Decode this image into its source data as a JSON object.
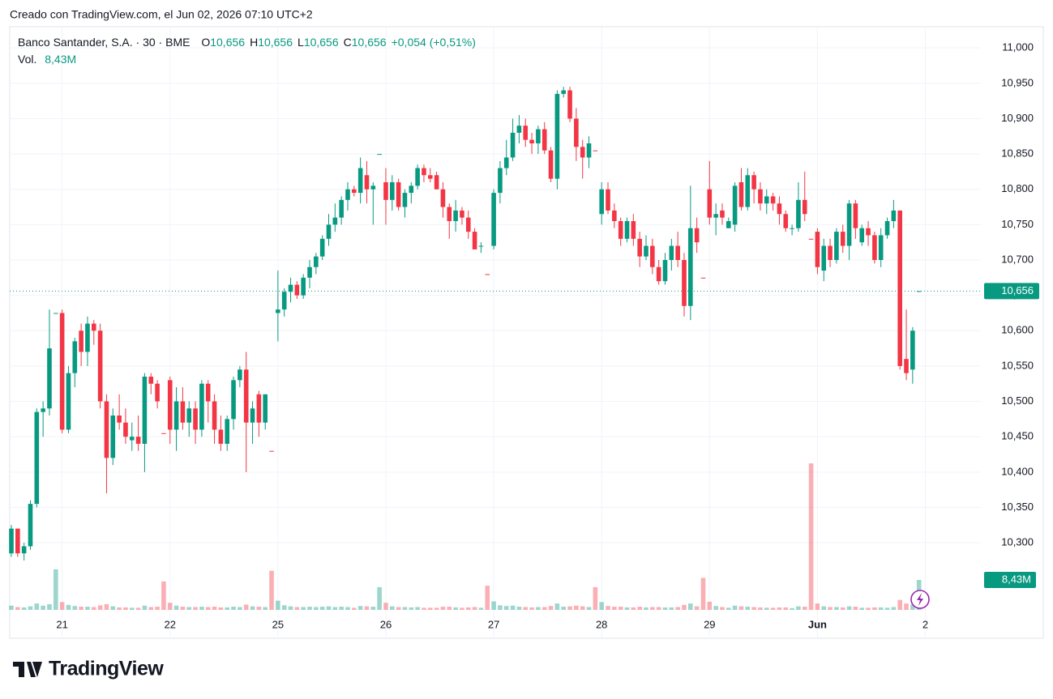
{
  "header": "Creado con TradingView.com, el Jun 02, 2026 07:10 UTC+2",
  "footer": "TradingView",
  "chart_data": {
    "type": "candlestick",
    "symbol": "Banco Santander, S.A. · 30 · BME",
    "ohlc_legend": [
      {
        "key": "O",
        "value": "10,656"
      },
      {
        "key": "H",
        "value": "10,656"
      },
      {
        "key": "L",
        "value": "10,656"
      },
      {
        "key": "C",
        "value": "10,656"
      }
    ],
    "change": "+0,054 (+0,51%)",
    "volume_legend": {
      "key": "Vol.",
      "value": "8,43M"
    },
    "up_color": "#089981",
    "down_color": "#f23645",
    "grid": true,
    "categories": [
      null,
      null,
      null,
      null,
      null,
      null,
      null,
      null,
      "21",
      null,
      null,
      null,
      null,
      null,
      null,
      null,
      null,
      null,
      null,
      null,
      null,
      null,
      null,
      null,
      null,
      "22",
      null,
      null,
      null,
      null,
      null,
      null,
      null,
      null,
      null,
      null,
      null,
      null,
      null,
      null,
      null,
      null,
      "25",
      null,
      null,
      null,
      null,
      null,
      null,
      null,
      null,
      null,
      null,
      null,
      null,
      null,
      null,
      null,
      null,
      "26",
      null,
      null,
      null,
      null,
      null,
      null,
      null,
      null,
      null,
      null,
      null,
      null,
      null,
      null,
      null,
      null,
      "27",
      null,
      null,
      null,
      null,
      null,
      null,
      null,
      null,
      null,
      null,
      null,
      null,
      null,
      null,
      null,
      null,
      "28",
      null,
      null,
      null,
      null,
      null,
      null,
      null,
      null,
      null,
      null,
      null,
      null,
      null,
      null,
      null,
      null,
      "29",
      null,
      null,
      null,
      null,
      null,
      null,
      null,
      null,
      null,
      null,
      null,
      null,
      null,
      null,
      null,
      null,
      "Jun",
      null,
      null,
      null,
      null,
      null,
      null,
      null,
      null,
      null,
      null,
      null,
      null,
      null,
      null,
      null,
      null,
      "2"
    ],
    "ohlc": [
      [
        10.285,
        10.325,
        10.28,
        10.32
      ],
      [
        10.32,
        10.32,
        10.28,
        10.285
      ],
      [
        10.285,
        10.3,
        10.275,
        10.295
      ],
      [
        10.295,
        10.36,
        10.29,
        10.355
      ],
      [
        10.355,
        10.49,
        10.35,
        10.485
      ],
      [
        10.485,
        10.5,
        10.45,
        10.49
      ],
      [
        10.49,
        10.63,
        10.48,
        10.575
      ],
      [
        10.625,
        10.625,
        10.625,
        10.625
      ],
      [
        10.625,
        10.63,
        10.455,
        10.46
      ],
      [
        10.46,
        10.55,
        10.455,
        10.54
      ],
      [
        10.54,
        10.59,
        10.52,
        10.585
      ],
      [
        10.6,
        10.61,
        10.55,
        10.57
      ],
      [
        10.57,
        10.62,
        10.55,
        10.61
      ],
      [
        10.61,
        10.615,
        10.58,
        10.6
      ],
      [
        10.6,
        10.61,
        10.49,
        10.5
      ],
      [
        10.5,
        10.51,
        10.37,
        10.42
      ],
      [
        10.42,
        10.49,
        10.41,
        10.48
      ],
      [
        10.48,
        10.51,
        10.46,
        10.47
      ],
      [
        10.47,
        10.49,
        10.44,
        10.45
      ],
      [
        10.445,
        10.47,
        10.43,
        10.45
      ],
      [
        10.45,
        10.48,
        10.43,
        10.44
      ],
      [
        10.44,
        10.54,
        10.4,
        10.535
      ],
      [
        10.535,
        10.54,
        10.51,
        10.525
      ],
      [
        10.525,
        10.53,
        10.49,
        10.5
      ],
      [
        10.455,
        10.455,
        10.455,
        10.455
      ],
      [
        10.53,
        10.535,
        10.44,
        10.46
      ],
      [
        10.46,
        10.52,
        10.43,
        10.5
      ],
      [
        10.5,
        10.52,
        10.46,
        10.47
      ],
      [
        10.47,
        10.5,
        10.45,
        10.49
      ],
      [
        10.49,
        10.5,
        10.44,
        10.46
      ],
      [
        10.46,
        10.53,
        10.45,
        10.525
      ],
      [
        10.525,
        10.53,
        10.47,
        10.5
      ],
      [
        10.5,
        10.51,
        10.44,
        10.46
      ],
      [
        10.46,
        10.48,
        10.43,
        10.44
      ],
      [
        10.44,
        10.48,
        10.43,
        10.475
      ],
      [
        10.475,
        10.535,
        10.46,
        10.53
      ],
      [
        10.53,
        10.55,
        10.52,
        10.545
      ],
      [
        10.545,
        10.57,
        10.4,
        10.47
      ],
      [
        10.47,
        10.5,
        10.44,
        10.49
      ],
      [
        10.51,
        10.515,
        10.45,
        10.47
      ],
      [
        10.47,
        10.51,
        10.46,
        10.51
      ],
      [
        10.43,
        10.43,
        10.43,
        10.43
      ],
      [
        10.625,
        10.685,
        10.585,
        10.63
      ],
      [
        10.63,
        10.66,
        10.62,
        10.655
      ],
      [
        10.655,
        10.675,
        10.64,
        10.665
      ],
      [
        10.665,
        10.67,
        10.645,
        10.65
      ],
      [
        10.65,
        10.68,
        10.645,
        10.675
      ],
      [
        10.675,
        10.7,
        10.66,
        10.69
      ],
      [
        10.69,
        10.71,
        10.68,
        10.705
      ],
      [
        10.705,
        10.735,
        10.7,
        10.73
      ],
      [
        10.73,
        10.765,
        10.72,
        10.75
      ],
      [
        10.75,
        10.78,
        10.74,
        10.76
      ],
      [
        10.76,
        10.79,
        10.75,
        10.785
      ],
      [
        10.785,
        10.81,
        10.77,
        10.8
      ],
      [
        10.8,
        10.805,
        10.79,
        10.795
      ],
      [
        10.795,
        10.845,
        10.78,
        10.83
      ],
      [
        10.82,
        10.84,
        10.78,
        10.8
      ],
      [
        10.8,
        10.81,
        10.75,
        10.805
      ],
      [
        10.85,
        10.85,
        10.85,
        10.85
      ],
      [
        10.81,
        10.83,
        10.75,
        10.785
      ],
      [
        10.785,
        10.82,
        10.77,
        10.81
      ],
      [
        10.81,
        10.815,
        10.77,
        10.775
      ],
      [
        10.775,
        10.8,
        10.76,
        10.795
      ],
      [
        10.795,
        10.81,
        10.78,
        10.805
      ],
      [
        10.805,
        10.835,
        10.8,
        10.83
      ],
      [
        10.83,
        10.835,
        10.81,
        10.82
      ],
      [
        10.82,
        10.83,
        10.81,
        10.815
      ],
      [
        10.82,
        10.825,
        10.8,
        10.8
      ],
      [
        10.8,
        10.81,
        10.76,
        10.775
      ],
      [
        10.775,
        10.78,
        10.73,
        10.755
      ],
      [
        10.755,
        10.785,
        10.74,
        10.77
      ],
      [
        10.77,
        10.775,
        10.75,
        10.76
      ],
      [
        10.76,
        10.77,
        10.73,
        10.74
      ],
      [
        10.74,
        10.745,
        10.715,
        10.715
      ],
      [
        10.72,
        10.725,
        10.71,
        10.72
      ],
      [
        10.68,
        10.68,
        10.68,
        10.68
      ],
      [
        10.72,
        10.8,
        10.715,
        10.795
      ],
      [
        10.795,
        10.84,
        10.78,
        10.83
      ],
      [
        10.83,
        10.87,
        10.82,
        10.845
      ],
      [
        10.845,
        10.9,
        10.84,
        10.88
      ],
      [
        10.88,
        10.905,
        10.865,
        10.89
      ],
      [
        10.89,
        10.9,
        10.86,
        10.87
      ],
      [
        10.87,
        10.88,
        10.85,
        10.865
      ],
      [
        10.865,
        10.89,
        10.85,
        10.885
      ],
      [
        10.885,
        10.895,
        10.85,
        10.855
      ],
      [
        10.855,
        10.86,
        10.81,
        10.815
      ],
      [
        10.815,
        10.94,
        10.8,
        10.935
      ],
      [
        10.935,
        10.945,
        10.93,
        10.94
      ],
      [
        10.94,
        10.945,
        10.895,
        10.9
      ],
      [
        10.9,
        10.915,
        10.84,
        10.86
      ],
      [
        10.86,
        10.87,
        10.815,
        10.845
      ],
      [
        10.845,
        10.875,
        10.83,
        10.865
      ],
      [
        10.855,
        10.855,
        10.855,
        10.855
      ],
      [
        10.765,
        10.81,
        10.75,
        10.8
      ],
      [
        10.8,
        10.81,
        10.765,
        10.77
      ],
      [
        10.77,
        10.78,
        10.745,
        10.755
      ],
      [
        10.755,
        10.76,
        10.72,
        10.73
      ],
      [
        10.73,
        10.76,
        10.725,
        10.755
      ],
      [
        10.755,
        10.765,
        10.72,
        10.73
      ],
      [
        10.73,
        10.74,
        10.69,
        10.705
      ],
      [
        10.705,
        10.735,
        10.7,
        10.72
      ],
      [
        10.72,
        10.73,
        10.68,
        10.69
      ],
      [
        10.69,
        10.7,
        10.665,
        10.67
      ],
      [
        10.67,
        10.71,
        10.665,
        10.7
      ],
      [
        10.7,
        10.73,
        10.685,
        10.72
      ],
      [
        10.72,
        10.74,
        10.69,
        10.7
      ],
      [
        10.7,
        10.71,
        10.62,
        10.635
      ],
      [
        10.635,
        10.805,
        10.615,
        10.745
      ],
      [
        10.745,
        10.76,
        10.71,
        10.725
      ],
      [
        10.675,
        10.675,
        10.675,
        10.675
      ],
      [
        10.8,
        10.84,
        10.75,
        10.76
      ],
      [
        10.76,
        10.78,
        10.735,
        10.765
      ],
      [
        10.77,
        10.78,
        10.75,
        10.76
      ],
      [
        10.745,
        10.76,
        10.745,
        10.755
      ],
      [
        10.75,
        10.81,
        10.74,
        10.805
      ],
      [
        10.81,
        10.83,
        10.77,
        10.775
      ],
      [
        10.775,
        10.83,
        10.77,
        10.82
      ],
      [
        10.82,
        10.825,
        10.78,
        10.8
      ],
      [
        10.8,
        10.81,
        10.77,
        10.78
      ],
      [
        10.78,
        10.8,
        10.765,
        10.79
      ],
      [
        10.79,
        10.795,
        10.77,
        10.78
      ],
      [
        10.78,
        10.79,
        10.75,
        10.765
      ],
      [
        10.765,
        10.77,
        10.74,
        10.745
      ],
      [
        10.745,
        10.75,
        10.735,
        10.745
      ],
      [
        10.745,
        10.81,
        10.74,
        10.785
      ],
      [
        10.785,
        10.825,
        10.755,
        10.765
      ],
      [
        10.73,
        10.73,
        10.73,
        10.73
      ],
      [
        10.74,
        10.745,
        10.68,
        10.69
      ],
      [
        10.685,
        10.73,
        10.67,
        10.72
      ],
      [
        10.72,
        10.73,
        10.69,
        10.7
      ],
      [
        10.7,
        10.745,
        10.695,
        10.74
      ],
      [
        10.74,
        10.75,
        10.71,
        10.72
      ],
      [
        10.72,
        10.785,
        10.7,
        10.78
      ],
      [
        10.78,
        10.785,
        10.73,
        10.745
      ],
      [
        10.725,
        10.75,
        10.72,
        10.745
      ],
      [
        10.745,
        10.755,
        10.72,
        10.735
      ],
      [
        10.735,
        10.74,
        10.695,
        10.7
      ],
      [
        10.7,
        10.745,
        10.69,
        10.735
      ],
      [
        10.735,
        10.76,
        10.73,
        10.755
      ],
      [
        10.755,
        10.785,
        10.745,
        10.77
      ],
      [
        10.77,
        10.77,
        10.545,
        10.55
      ],
      [
        10.56,
        10.63,
        10.53,
        10.54
      ],
      [
        10.545,
        10.605,
        10.525,
        10.6
      ],
      [
        10.656,
        10.656,
        10.656,
        10.656
      ],
      null
    ],
    "volume": [
      1.2,
      0.8,
      0.7,
      1.0,
      1.8,
      1.2,
      1.6,
      11.4,
      2.2,
      1.4,
      1.1,
      0.9,
      0.9,
      0.8,
      1.3,
      1.6,
      1.0,
      0.7,
      0.7,
      0.6,
      0.6,
      1.2,
      0.8,
      0.9,
      8.0,
      2.0,
      1.2,
      0.9,
      0.8,
      0.8,
      0.9,
      0.8,
      0.9,
      0.7,
      0.7,
      0.9,
      0.8,
      1.5,
      1.0,
      0.9,
      0.8,
      11.0,
      2.6,
      1.3,
      1.0,
      0.8,
      0.8,
      0.9,
      0.8,
      0.9,
      1.0,
      0.8,
      0.9,
      0.8,
      0.6,
      1.1,
      1.0,
      0.9,
      6.4,
      2.0,
      1.0,
      0.8,
      0.8,
      0.7,
      0.8,
      0.6,
      0.6,
      0.6,
      0.9,
      0.9,
      0.7,
      0.6,
      0.7,
      0.8,
      0.6,
      6.8,
      2.4,
      1.3,
      1.1,
      1.2,
      0.9,
      0.8,
      0.7,
      0.8,
      0.8,
      1.1,
      1.8,
      0.9,
      1.0,
      1.2,
      1.0,
      0.8,
      6.4,
      2.2,
      1.1,
      0.9,
      0.9,
      0.7,
      0.7,
      0.9,
      0.7,
      0.8,
      0.8,
      0.7,
      0.7,
      0.8,
      1.4,
      1.8,
      1.0,
      9.0,
      2.3,
      1.1,
      0.8,
      0.6,
      1.2,
      1.0,
      0.9,
      0.8,
      0.7,
      0.6,
      0.6,
      0.7,
      0.7,
      0.5,
      1.0,
      0.9,
      41.2,
      1.8,
      1.0,
      0.8,
      0.8,
      0.7,
      1.0,
      0.9,
      0.6,
      0.6,
      0.7,
      0.7,
      0.6,
      0.8,
      2.8,
      1.8,
      1.5,
      8.43,
      null
    ],
    "ylim": [
      10.205,
      11.03
    ],
    "yticks": [
      {
        "value": 10.3,
        "label": "10,300"
      },
      {
        "value": 10.35,
        "label": "10,350"
      },
      {
        "value": 10.4,
        "label": "10,400"
      },
      {
        "value": 10.45,
        "label": "10,450"
      },
      {
        "value": 10.5,
        "label": "10,500"
      },
      {
        "value": 10.55,
        "label": "10,550"
      },
      {
        "value": 10.6,
        "label": "10,600"
      },
      {
        "value": 10.65,
        "label": "10,650"
      },
      {
        "value": 10.7,
        "label": "10,700"
      },
      {
        "value": 10.75,
        "label": "10,750"
      },
      {
        "value": 10.8,
        "label": "10,800"
      },
      {
        "value": 10.85,
        "label": "10,850"
      },
      {
        "value": 10.9,
        "label": "10,900"
      },
      {
        "value": 10.95,
        "label": "10,950"
      },
      {
        "value": 11.0,
        "label": "11,000"
      }
    ],
    "y2lim": [
      0,
      164
    ],
    "last_price": {
      "value": 10.656,
      "label": "10,656"
    },
    "last_volume": {
      "value": 8.43,
      "label": "8,43M"
    }
  }
}
